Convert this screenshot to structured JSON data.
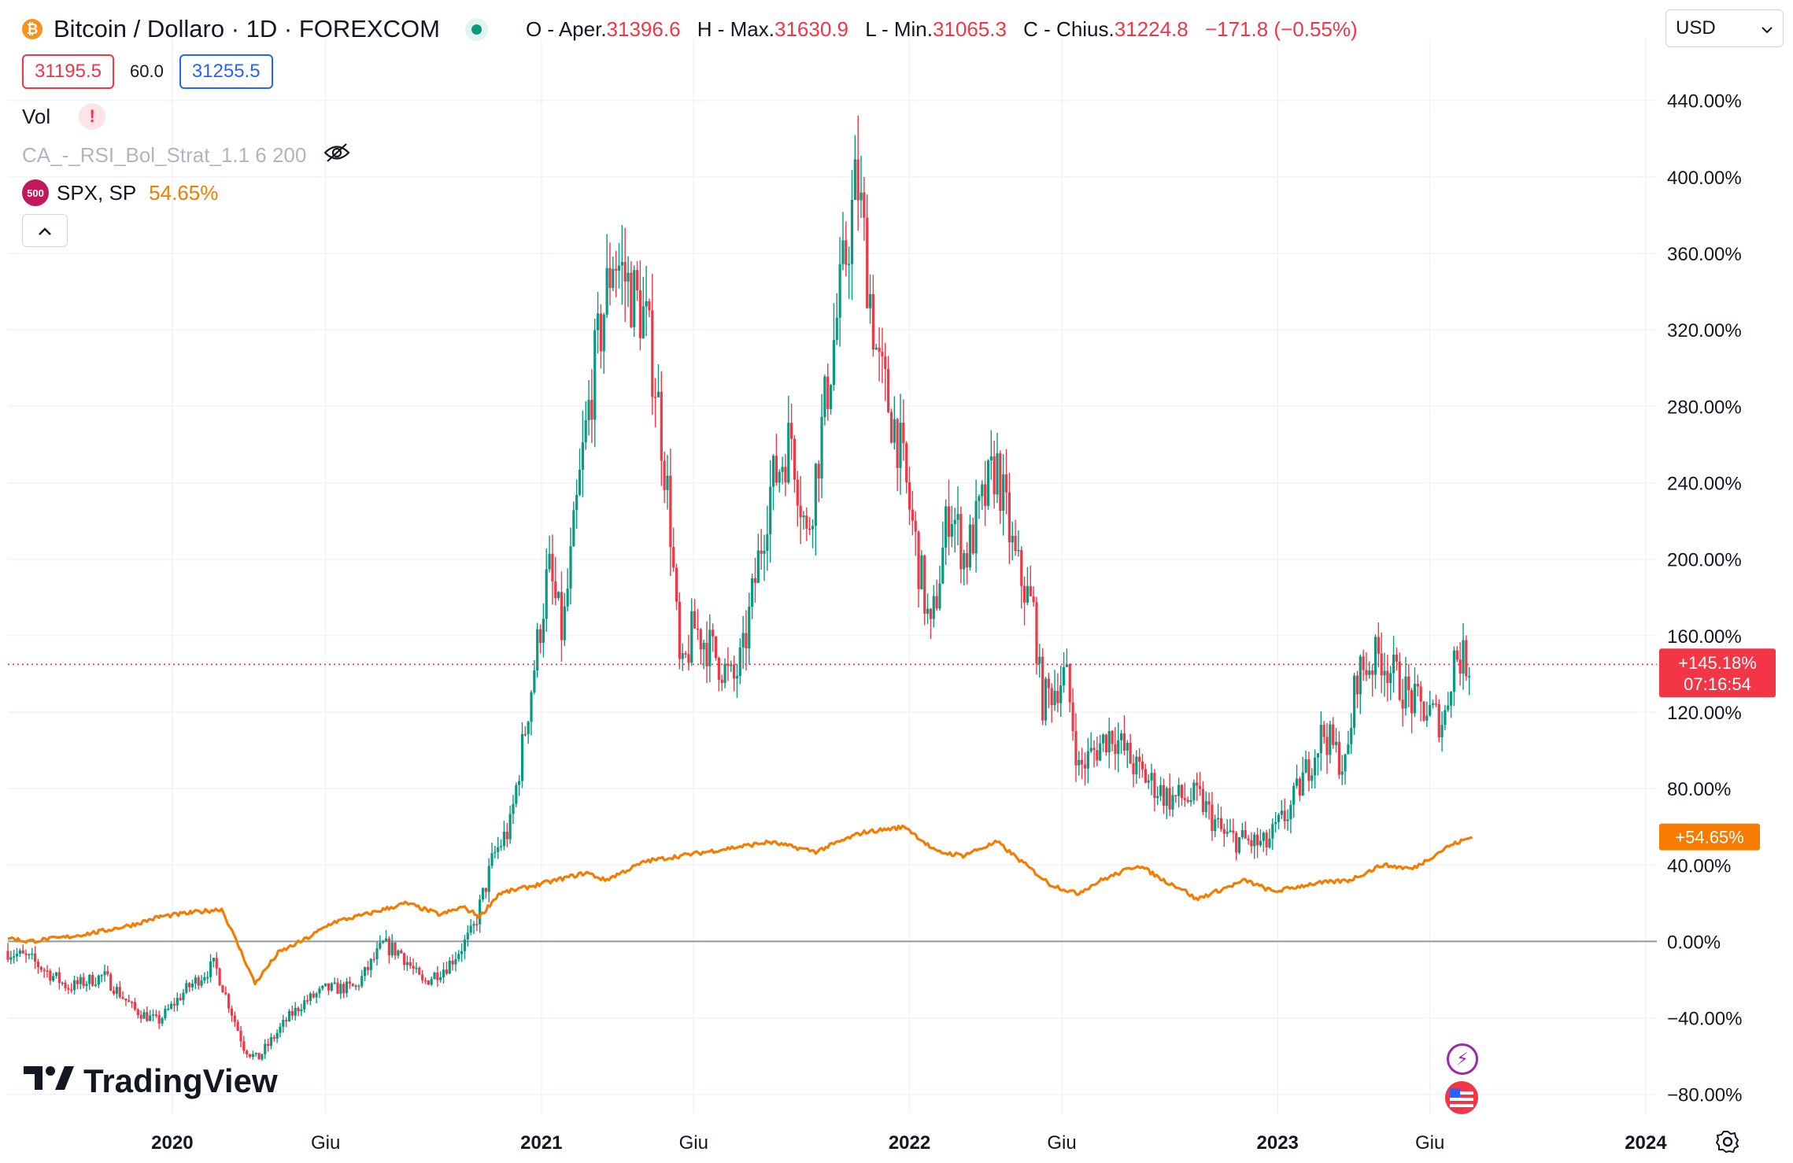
{
  "header": {
    "symbol_title": "Bitcoin / Dollaro · 1D · FOREXCOM",
    "coin_glyph": "₿",
    "ohlc": [
      {
        "label": "O - Aper.",
        "value": "31396.6"
      },
      {
        "label": "H - Max.",
        "value": "31630.9"
      },
      {
        "label": "L - Min.",
        "value": "31065.3"
      },
      {
        "label": "C - Chius.",
        "value": "31224.8"
      }
    ],
    "change": "−171.8 (−0.55%)"
  },
  "trade": {
    "sell_price": "31195.5",
    "spread": "60.0",
    "buy_price": "31255.5"
  },
  "volume": {
    "label": "Vol",
    "warning": "!"
  },
  "indicator": {
    "name": "CA_-_RSI_Bol_Strat_1.1 6 200",
    "hidden_icon": "eye-off-icon"
  },
  "compare": {
    "badge": "500",
    "name": "SPX, SP",
    "value": "54.65%"
  },
  "currency": {
    "selected": "USD"
  },
  "branding": {
    "name": "TradingView"
  },
  "colors": {
    "up": "#089981",
    "down": "#f23645",
    "spx": "#f57c00",
    "grid": "#f0f3fa",
    "baseline": "#9598a1"
  },
  "chart_data": {
    "type": "line",
    "y_unit": "%",
    "ylim": [
      -90,
      472
    ],
    "y_ticks": [
      -80,
      -40,
      0,
      40,
      80,
      120,
      160,
      200,
      240,
      280,
      320,
      360,
      400,
      440
    ],
    "y_tick_labels": [
      "−80.00%",
      "−40.00%",
      "0.00%",
      "40.00%",
      "80.00%",
      "120.00%",
      "160.00%",
      "200.00%",
      "240.00%",
      "280.00%",
      "320.00%",
      "360.00%",
      "400.00%",
      "440.00%"
    ],
    "xlim": [
      "2019-07-22",
      "2024-01-12"
    ],
    "x_ticks": [
      {
        "date": "2020-01-01",
        "label": "2020"
      },
      {
        "date": "2020-06-01",
        "label": "Giu"
      },
      {
        "date": "2021-01-01",
        "label": "2021"
      },
      {
        "date": "2021-06-01",
        "label": "Giu"
      },
      {
        "date": "2022-01-01",
        "label": "2022"
      },
      {
        "date": "2022-06-01",
        "label": "Giu"
      },
      {
        "date": "2023-01-01",
        "label": "2023"
      },
      {
        "date": "2023-06-01",
        "label": "Giu"
      },
      {
        "date": "2024-01-01",
        "label": "2024"
      }
    ],
    "series": [
      {
        "name": "Bitcoin / Dollaro",
        "style": "candles",
        "x": [
          "2019-07-22",
          "2019-08-15",
          "2019-09-20",
          "2019-10-25",
          "2019-11-25",
          "2019-12-18",
          "2020-01-15",
          "2020-02-12",
          "2020-03-12",
          "2020-03-25",
          "2020-04-25",
          "2020-05-10",
          "2020-06-01",
          "2020-07-01",
          "2020-07-28",
          "2020-08-15",
          "2020-09-05",
          "2020-10-01",
          "2020-10-25",
          "2020-11-15",
          "2020-12-01",
          "2020-12-17",
          "2021-01-08",
          "2021-01-22",
          "2021-02-10",
          "2021-02-21",
          "2021-03-13",
          "2021-04-14",
          "2021-04-25",
          "2021-05-08",
          "2021-05-19",
          "2021-06-01",
          "2021-06-22",
          "2021-07-10",
          "2021-07-20",
          "2021-08-15",
          "2021-09-06",
          "2021-09-21",
          "2021-10-20",
          "2021-11-10",
          "2021-12-01",
          "2021-12-20",
          "2022-01-22",
          "2022-02-10",
          "2022-02-25",
          "2022-03-28",
          "2022-04-15",
          "2022-05-05",
          "2022-05-12",
          "2022-06-05",
          "2022-06-18",
          "2022-07-20",
          "2022-08-14",
          "2022-09-15",
          "2022-10-15",
          "2022-11-09",
          "2022-12-20",
          "2023-01-14",
          "2023-02-15",
          "2023-03-10",
          "2023-03-20",
          "2023-04-13",
          "2023-05-15",
          "2023-06-15",
          "2023-06-25",
          "2023-07-13"
        ],
        "values": [
          -5,
          -10,
          -24,
          -18,
          -36,
          -42,
          -25,
          -12,
          -55,
          -62,
          -40,
          -32,
          -25,
          -24,
          -2,
          -6,
          -22,
          -12,
          5,
          45,
          60,
          115,
          195,
          160,
          250,
          295,
          360,
          325,
          290,
          225,
          135,
          165,
          150,
          135,
          150,
          235,
          265,
          210,
          322,
          400,
          300,
          265,
          160,
          230,
          200,
          250,
          200,
          170,
          125,
          140,
          90,
          110,
          90,
          75,
          75,
          55,
          50,
          70,
          110,
          90,
          140,
          150,
          125,
          115,
          150,
          145
        ]
      },
      {
        "name": "SPX, SP",
        "style": "line",
        "x": [
          "2019-07-22",
          "2019-08-10",
          "2019-09-15",
          "2019-10-20",
          "2019-11-25",
          "2019-12-20",
          "2020-01-20",
          "2020-02-19",
          "2020-03-09",
          "2020-03-23",
          "2020-04-15",
          "2020-05-15",
          "2020-06-08",
          "2020-07-10",
          "2020-08-20",
          "2020-09-23",
          "2020-10-15",
          "2020-11-01",
          "2020-11-20",
          "2020-12-31",
          "2021-02-15",
          "2021-03-05",
          "2021-04-15",
          "2021-06-15",
          "2021-08-15",
          "2021-09-30",
          "2021-11-15",
          "2021-12-28",
          "2022-01-27",
          "2022-02-23",
          "2022-03-29",
          "2022-05-20",
          "2022-06-16",
          "2022-07-10",
          "2022-08-16",
          "2022-09-10",
          "2022-09-30",
          "2022-10-12",
          "2022-11-30",
          "2022-12-28",
          "2023-02-02",
          "2023-03-13",
          "2023-04-15",
          "2023-05-15",
          "2023-06-20",
          "2023-07-13"
        ],
        "values": [
          2,
          0,
          2,
          5,
          9,
          13,
          15,
          17,
          -5,
          -22,
          -6,
          2,
          10,
          14,
          20,
          14,
          18,
          13,
          25,
          30,
          36,
          32,
          42,
          47,
          52,
          47,
          57,
          60,
          47,
          45,
          52,
          30,
          25,
          32,
          40,
          32,
          27,
          22,
          32,
          26,
          30,
          32,
          40,
          38,
          50,
          54.65
        ]
      }
    ],
    "current_price_label": "+145.18%",
    "current_countdown": "07:16:54",
    "spx_label": "+54.65%"
  }
}
